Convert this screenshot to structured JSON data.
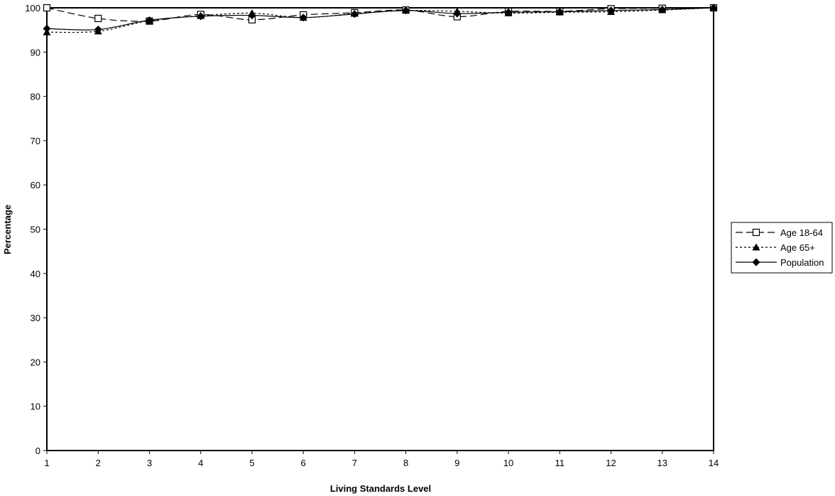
{
  "chart_data": {
    "type": "line",
    "title": "",
    "xlabel": "Living Standards Level",
    "ylabel": "Percentage",
    "x": [
      1,
      2,
      3,
      4,
      5,
      6,
      7,
      8,
      9,
      10,
      11,
      12,
      13,
      14
    ],
    "xlim": [
      1,
      14
    ],
    "ylim": [
      0,
      100
    ],
    "yticks": [
      0,
      10,
      20,
      30,
      40,
      50,
      60,
      70,
      80,
      90,
      100
    ],
    "grid": false,
    "legend_position": "right",
    "series": [
      {
        "name": "Age 18-64",
        "marker": "open-square",
        "line_style": "dashed",
        "color": "#000000",
        "values": [
          100,
          97.6,
          97.0,
          98.5,
          97.3,
          98.4,
          98.9,
          99.5,
          98.0,
          99.2,
          99.2,
          99.8,
          99.9,
          100
        ]
      },
      {
        "name": "Age 65+",
        "marker": "filled-triangle",
        "line_style": "dotted",
        "color": "#000000",
        "values": [
          94.5,
          94.7,
          97.1,
          98.2,
          98.8,
          97.8,
          98.7,
          99.4,
          99.2,
          98.8,
          99.0,
          99.1,
          99.5,
          100
        ]
      },
      {
        "name": "Population",
        "marker": "filled-diamond",
        "line_style": "solid",
        "color": "#000000",
        "values": [
          95.3,
          95.1,
          97.2,
          98.1,
          98.3,
          97.8,
          98.6,
          99.4,
          98.7,
          99.0,
          99.1,
          99.4,
          99.6,
          100
        ]
      }
    ]
  }
}
